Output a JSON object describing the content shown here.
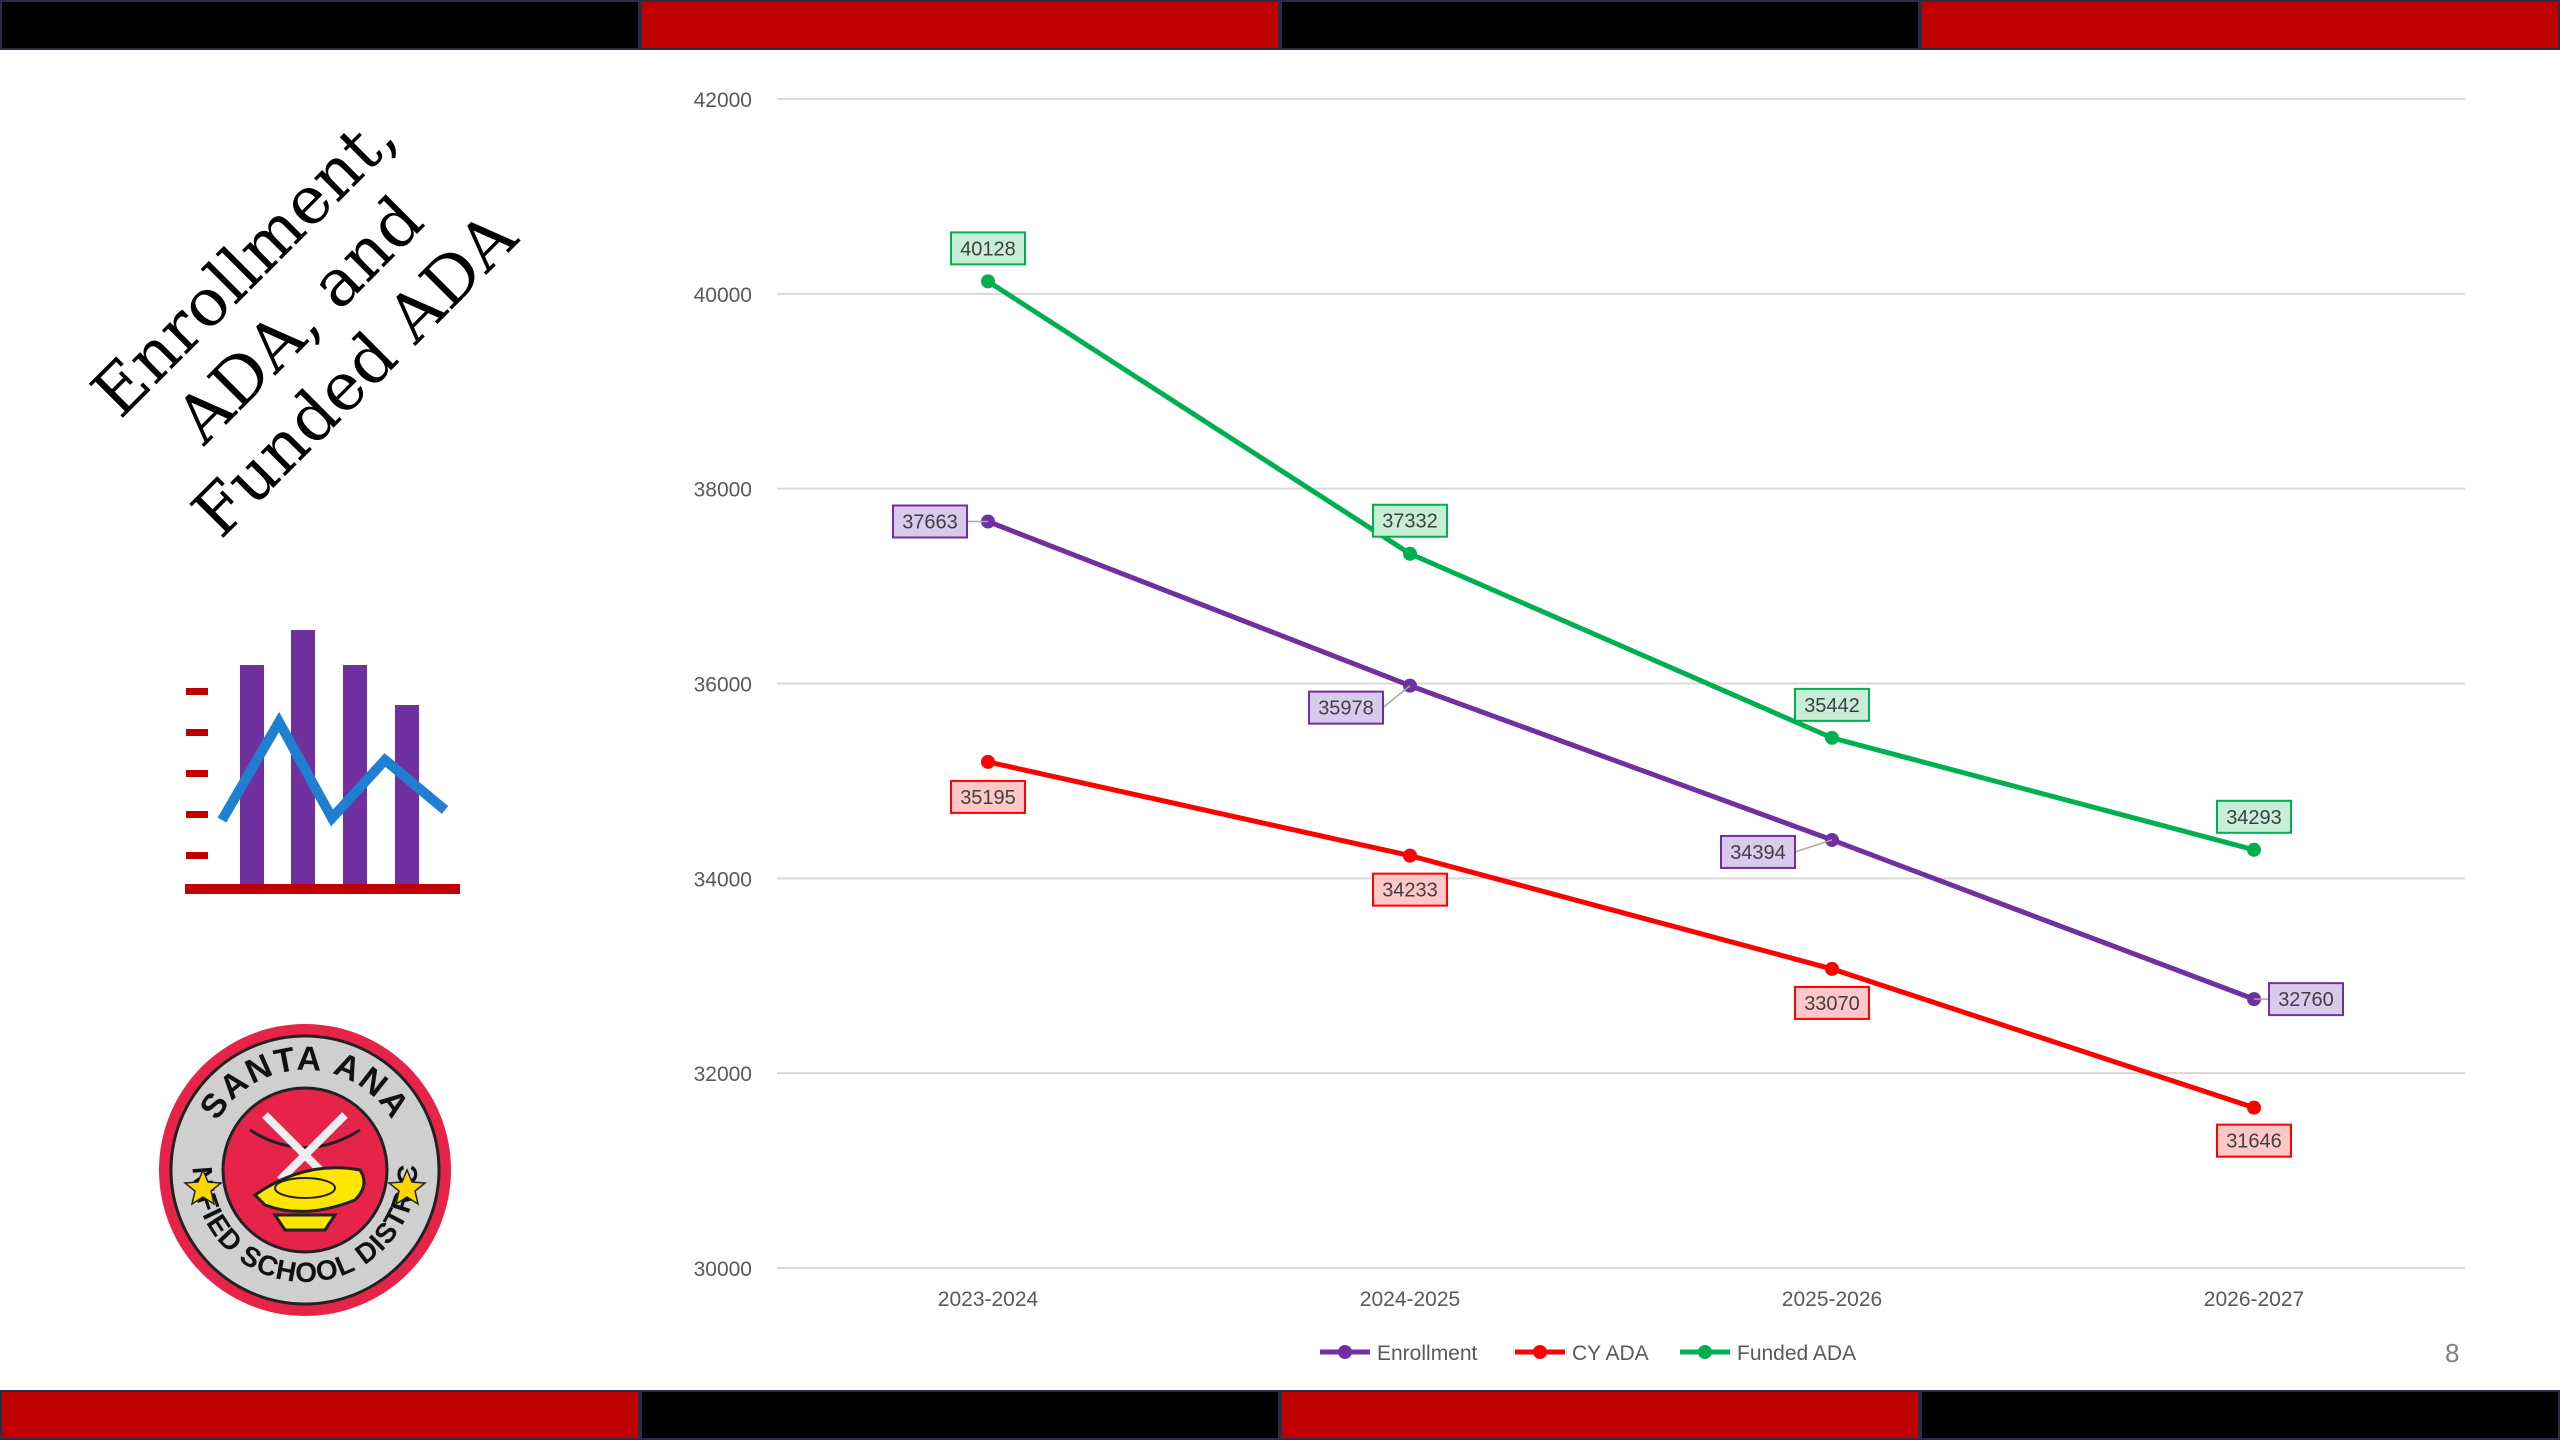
{
  "slide": {
    "title_lines": [
      "Enrollment,",
      "ADA, and",
      "Funded ADA"
    ],
    "page_number": "8",
    "logo_text_top": "SANTA ANA",
    "logo_text_bottom": "UNIFIED SCHOOL DISTRICT",
    "top_strip_colors": [
      "#000000",
      "#c00000",
      "#000000",
      "#c00000"
    ],
    "bottom_strip_colors": [
      "#c00000",
      "#000000",
      "#c00000",
      "#000000"
    ]
  },
  "chart_data": {
    "type": "line",
    "title": "",
    "xlabel": "",
    "ylabel": "",
    "categories": [
      "2023-2024",
      "2024-2025",
      "2025-2026",
      "2026-2027"
    ],
    "ylim": [
      30000,
      42000
    ],
    "yticks": [
      30000,
      32000,
      34000,
      36000,
      38000,
      40000,
      42000
    ],
    "grid": true,
    "legend": "bottom",
    "series": [
      {
        "name": "Enrollment",
        "color": "#7030a0",
        "label_bg": "#d9c9ea",
        "label_border": "#7030a0",
        "values": [
          37663,
          35978,
          34394,
          32760
        ]
      },
      {
        "name": "CY ADA",
        "color": "#ff0000",
        "label_bg": "#ffc7c7",
        "label_border": "#ff0000",
        "values": [
          35195,
          34233,
          33070,
          31646
        ]
      },
      {
        "name": "Funded ADA",
        "color": "#00b050",
        "label_bg": "#c6efd6",
        "label_border": "#00b050",
        "values": [
          40128,
          37332,
          35442,
          34293
        ]
      }
    ]
  }
}
